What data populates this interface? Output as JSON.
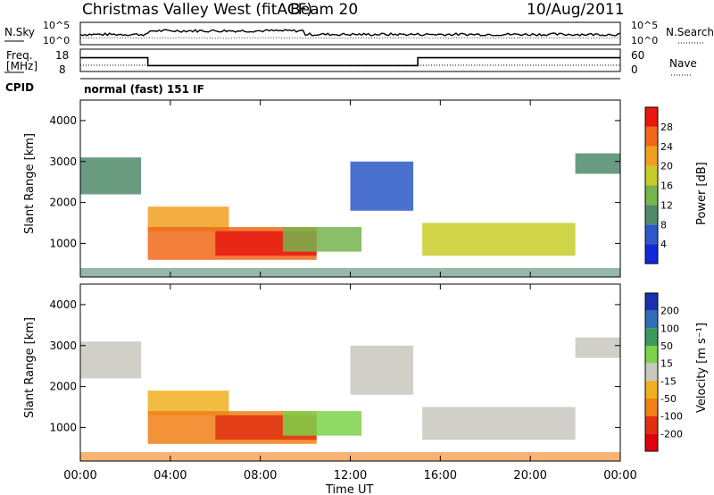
{
  "header": {
    "station": "Christmas Valley West (fitACF)",
    "beam": "Beam 20",
    "date": "10/Aug/2011"
  },
  "noise_panel": {
    "left_label": "N.Sky",
    "left_ticks": [
      "10^5",
      "10^0"
    ],
    "right_ticks": [
      "10^5",
      "10^0"
    ],
    "right_label": "N.Search"
  },
  "freq_panel": {
    "left_label_1": "Freq.",
    "left_label_2": "[MHz]",
    "left_ticks": [
      "18",
      "8"
    ],
    "right_ticks": [
      "60",
      "0"
    ],
    "right_label": "Nave",
    "freq_steps": [
      {
        "start": 0.0,
        "end": 3.0,
        "value": 15
      },
      {
        "start": 3.0,
        "end": 15.0,
        "value": 11
      },
      {
        "start": 15.0,
        "end": 24.0,
        "value": 15
      }
    ]
  },
  "cpid": {
    "label": "CPID",
    "value": "normal (fast) 151 IF"
  },
  "power_panel": {
    "ylabel": "Slant Range [km]",
    "yticks": [
      "1000",
      "2000",
      "3000",
      "4000"
    ],
    "colorbar_label": "Power [dB]",
    "colorbar_ticks": [
      "4",
      "8",
      "12",
      "16",
      "20",
      "24",
      "28"
    ],
    "colors": [
      "#1028d8",
      "#2c58c8",
      "#4f8a6a",
      "#76b44e",
      "#c8cc28",
      "#f0a020",
      "#f06818",
      "#e81810"
    ]
  },
  "velocity_panel": {
    "ylabel": "Slant Range [km]",
    "yticks": [
      "1000",
      "2000",
      "3000",
      "4000"
    ],
    "colorbar_label": "Velocity [m s⁻¹]",
    "colorbar_ticks": [
      "200",
      "100",
      "50",
      "15",
      "-15",
      "-50",
      "-100",
      "-200"
    ],
    "colors": [
      "#1a30b0",
      "#2f6fb8",
      "#3a9a5a",
      "#7ed24a",
      "#c8c8c0",
      "#f0b020",
      "#f08018",
      "#e03010",
      "#e00010"
    ]
  },
  "xaxis": {
    "label": "Time UT",
    "ticks": [
      "00:00",
      "04:00",
      "08:00",
      "12:00",
      "16:00",
      "20:00",
      "00:00"
    ]
  },
  "chart_data": {
    "type": "heatmap",
    "title": "Christmas Valley West (fitACF) Beam 20 10/Aug/2011",
    "xlabel": "Time UT",
    "xlim": [
      0,
      24
    ],
    "ylim": [
      180,
      4500
    ],
    "panels": [
      "Power [dB]",
      "Velocity [m s⁻¹]"
    ],
    "power_range": [
      0,
      30
    ],
    "velocity_range": [
      -250,
      250
    ],
    "echo_regions": [
      {
        "t0": 0.0,
        "t1": 2.7,
        "r0": 2200,
        "r1": 3100,
        "power": 9,
        "velocity": -10
      },
      {
        "t0": 3.0,
        "t1": 6.6,
        "r0": 1300,
        "r1": 1900,
        "power": 22,
        "velocity": -20
      },
      {
        "t0": 3.0,
        "t1": 10.5,
        "r0": 600,
        "r1": 1400,
        "power": 24,
        "velocity": -80
      },
      {
        "t0": 6.0,
        "t1": 10.5,
        "r0": 700,
        "r1": 1300,
        "power": 28,
        "velocity": -150
      },
      {
        "t0": 9.0,
        "t1": 12.5,
        "r0": 800,
        "r1": 1400,
        "power": 14,
        "velocity": 30
      },
      {
        "t0": 12.0,
        "t1": 14.8,
        "r0": 1800,
        "r1": 3000,
        "power": 6,
        "velocity": 5
      },
      {
        "t0": 15.2,
        "t1": 22.0,
        "r0": 700,
        "r1": 1500,
        "power": 18,
        "velocity": -5
      },
      {
        "t0": 22.0,
        "t1": 24.0,
        "r0": 2700,
        "r1": 3200,
        "power": 10,
        "velocity": 0
      }
    ]
  }
}
